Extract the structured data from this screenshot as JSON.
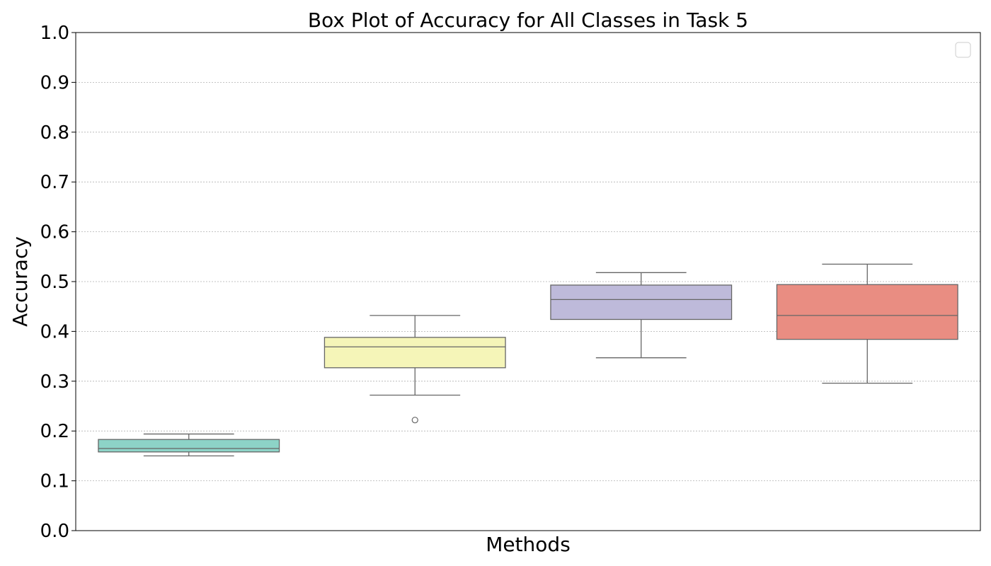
{
  "chart_data": {
    "type": "box",
    "title": "Box Plot of Accuracy for All Classes in Task 5",
    "xlabel": "Methods",
    "ylabel": "Accuracy",
    "ylim": [
      0.0,
      1.0
    ],
    "yticks": [
      "0.0",
      "0.1",
      "0.2",
      "0.3",
      "0.4",
      "0.5",
      "0.6",
      "0.7",
      "0.8",
      "0.9",
      "1.0"
    ],
    "grid": "horizontal dotted",
    "legend": {
      "placement": "top-right",
      "entries": []
    },
    "boxes": [
      {
        "color": "#8dd3c7",
        "whisker_low": 0.15,
        "q1": 0.158,
        "median": 0.165,
        "q3": 0.183,
        "whisker_high": 0.194,
        "outliers": []
      },
      {
        "color": "#f5f5b8",
        "whisker_low": 0.272,
        "q1": 0.327,
        "median": 0.369,
        "q3": 0.388,
        "whisker_high": 0.432,
        "outliers": [
          0.222
        ]
      },
      {
        "color": "#bebada",
        "whisker_low": 0.347,
        "q1": 0.424,
        "median": 0.464,
        "q3": 0.493,
        "whisker_high": 0.518,
        "outliers": []
      },
      {
        "color": "#e98d82",
        "whisker_low": 0.296,
        "q1": 0.384,
        "median": 0.432,
        "q3": 0.494,
        "whisker_high": 0.535,
        "outliers": []
      }
    ]
  }
}
